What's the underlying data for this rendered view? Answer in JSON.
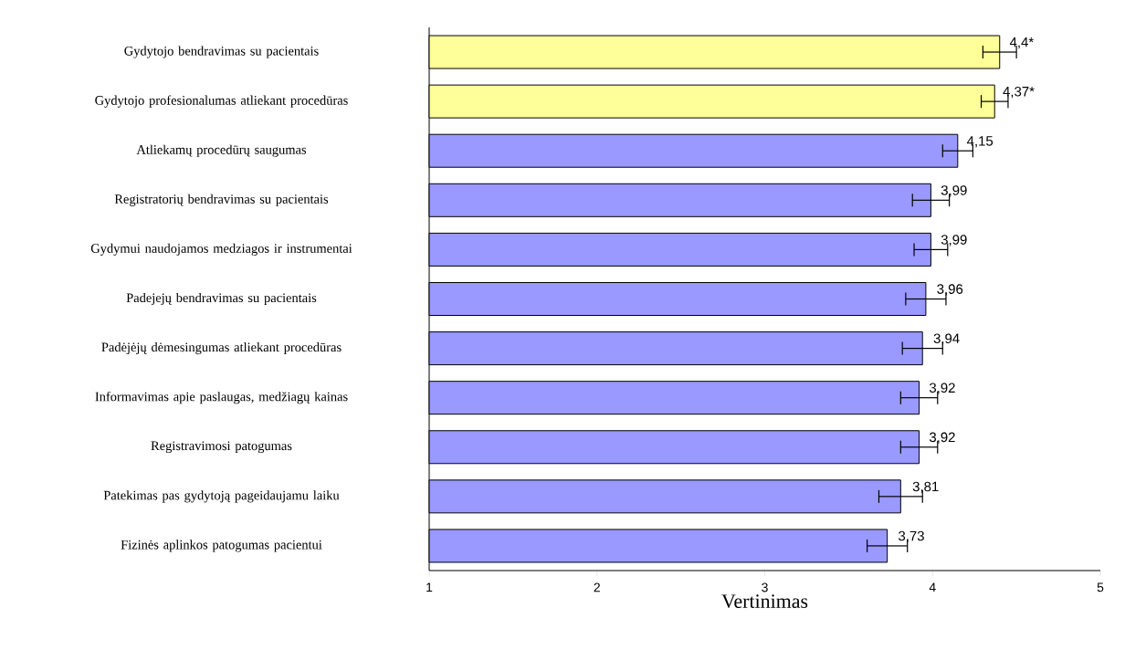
{
  "chart_data": {
    "type": "bar",
    "orientation": "horizontal",
    "xlabel": "Vertinimas",
    "categories": [
      "Gydytojo bendravimas su pacientais",
      "Gydytojo profesionalumas atliekant procedūras",
      "Atliekamų procedūrų saugumas",
      "Registratorių bendravimas su pacientais",
      "Gydymui naudojamos medziagos ir instrumentai",
      "Padejejų bendravimas su pacientais",
      "Padėjėjų dėmesingumas atliekant procedūras",
      "Informavimas apie paslaugas, medžiagų kainas",
      "Registravimosi patogumas",
      "Patekimas pas gydytoją pageidaujamu laiku",
      "Fizinės aplinkos patogumas pacientui"
    ],
    "values": [
      4.4,
      4.37,
      4.15,
      3.99,
      3.99,
      3.96,
      3.94,
      3.92,
      3.92,
      3.81,
      3.73
    ],
    "errors": [
      0.1,
      0.08,
      0.09,
      0.11,
      0.1,
      0.12,
      0.12,
      0.11,
      0.11,
      0.13,
      0.12
    ],
    "value_labels": [
      "4,4*",
      "4,37*",
      "4,15",
      "3,99",
      "3,99",
      "3,96",
      "3,94",
      "3,92",
      "3,92",
      "3,81",
      "3,73"
    ],
    "colors": [
      "#ffff99",
      "#ffff99",
      "#9999ff",
      "#9999ff",
      "#9999ff",
      "#9999ff",
      "#9999ff",
      "#9999ff",
      "#9999ff",
      "#9999ff",
      "#9999ff"
    ],
    "xlim": [
      1,
      5
    ],
    "xticks": [
      1,
      2,
      3,
      4,
      5
    ]
  }
}
